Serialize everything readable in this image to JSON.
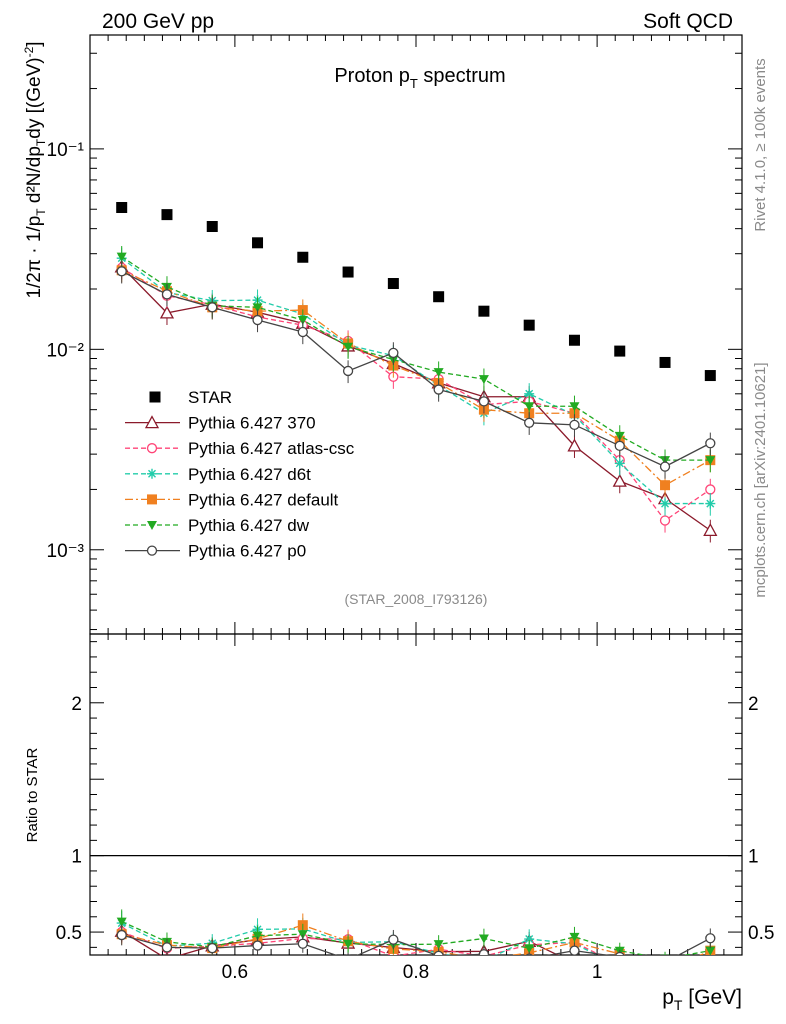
{
  "header": {
    "left": "200 GeV pp",
    "right": "Soft QCD"
  },
  "side_text": {
    "rivet": "Rivet 4.1.0, ≥ 100k events",
    "mcplots": "mcplots.cern.ch [arXiv:2401.10621]"
  },
  "chart_data": {
    "type": "scatter",
    "title": "Proton p_T spectrum",
    "analysis_label": "(STAR_2008_I793126)",
    "xlabel": "p_T [GeV]",
    "ylabel": "1/2π 1/p_T d²N/dp_T dy [(GeV)⁻²]",
    "ratio_ylabel": "Ratio to STAR",
    "xlim": [
      0.44,
      1.16
    ],
    "ylim": [
      0.00038,
      0.37
    ],
    "ratio_ylim": [
      0.35,
      2.45
    ],
    "x_ticks": [
      0.6,
      0.8,
      1
    ],
    "x_tick_labels": [
      "0.6",
      "0.8",
      "1"
    ],
    "y_ticks": [
      0.001,
      0.01,
      0.1
    ],
    "y_tick_labels": [
      "10⁻³",
      "10⁻²",
      "10⁻¹"
    ],
    "ratio_ticks": [
      0.5,
      1,
      2
    ],
    "ratio_tick_labels": [
      "0.5",
      "1",
      "2"
    ],
    "x": [
      0.475,
      0.525,
      0.575,
      0.625,
      0.675,
      0.725,
      0.775,
      0.825,
      0.875,
      0.925,
      0.975,
      1.025,
      1.075,
      1.125
    ],
    "reference": {
      "name": "STAR",
      "color": "#000000",
      "values": [
        0.051,
        0.047,
        0.041,
        0.034,
        0.0288,
        0.0243,
        0.0213,
        0.0183,
        0.0155,
        0.0132,
        0.0111,
        0.0098,
        0.0086,
        0.0074
      ]
    },
    "series": [
      {
        "name": "Pythia 6.427 370",
        "color": "#8b1a2b",
        "marker": "triangle-open",
        "dash": "",
        "values": [
          0.0258,
          0.0152,
          0.0168,
          0.0153,
          0.0135,
          0.0104,
          0.0085,
          0.0068,
          0.0058,
          0.0058,
          0.0033,
          0.0022,
          0.0018,
          0.00125
        ]
      },
      {
        "name": "Pythia 6.427 atlas-csc",
        "color": "#ff4477",
        "marker": "circle-open",
        "dash": "5,3",
        "values": [
          0.0255,
          0.0185,
          0.0167,
          0.0145,
          0.0132,
          0.011,
          0.0073,
          0.0071,
          0.0053,
          0.0055,
          0.0048,
          0.0028,
          0.0014,
          0.002
        ]
      },
      {
        "name": "Pythia 6.427 d6t",
        "color": "#22ccaa",
        "marker": "star",
        "dash": "5,3",
        "values": [
          0.0285,
          0.0192,
          0.0175,
          0.0176,
          0.015,
          0.0105,
          0.0093,
          0.0066,
          0.0048,
          0.006,
          0.0047,
          0.0027,
          0.0017,
          0.0017
        ]
      },
      {
        "name": "Pythia 6.427 default",
        "color": "#f08020",
        "marker": "square",
        "dash": "8,3,2,3",
        "values": [
          0.0248,
          0.0195,
          0.0162,
          0.0155,
          0.0157,
          0.0107,
          0.0083,
          0.0068,
          0.005,
          0.0048,
          0.0048,
          0.0035,
          0.0021,
          0.0028
        ]
      },
      {
        "name": "Pythia 6.427 dw",
        "color": "#22aa22",
        "marker": "triangle-down",
        "dash": "5,3",
        "values": [
          0.029,
          0.0205,
          0.0165,
          0.0162,
          0.014,
          0.0103,
          0.0089,
          0.0077,
          0.0071,
          0.0052,
          0.0052,
          0.0037,
          0.0028,
          0.0028
        ]
      },
      {
        "name": "Pythia 6.427 p0",
        "color": "#444444",
        "marker": "circle-open",
        "dash": "",
        "values": [
          0.0245,
          0.0188,
          0.0162,
          0.014,
          0.0122,
          0.0078,
          0.0096,
          0.0063,
          0.0055,
          0.0043,
          0.0042,
          0.0033,
          0.0026,
          0.0034
        ]
      }
    ]
  }
}
